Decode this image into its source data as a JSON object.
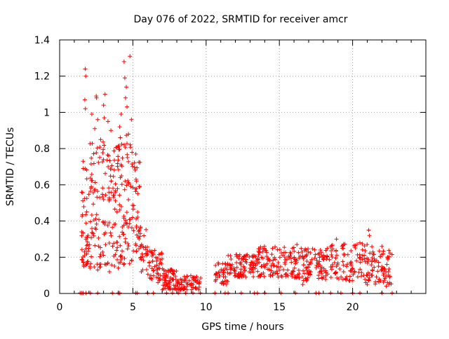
{
  "chart_data": {
    "type": "scatter",
    "title": "Day 076 of 2022, SRMTID for receiver amcr",
    "xlabel": "GPS time / hours",
    "ylabel": "SRMTID / TECUs",
    "xlim": [
      0,
      25
    ],
    "ylim": [
      0,
      1.4
    ],
    "xticks": [
      "0",
      "5",
      "10",
      "15",
      "20"
    ],
    "xtick_values": [
      0,
      5,
      10,
      15,
      20
    ],
    "yticks": [
      "0",
      "0.2",
      "0.4",
      "0.6",
      "0.8",
      "1",
      "1.2",
      "1.4"
    ],
    "ytick_values": [
      0,
      0.2,
      0.4,
      0.6,
      0.8,
      1.0,
      1.2,
      1.4
    ],
    "grid": true,
    "marker": "plus",
    "series": [
      {
        "name": "SRMTID",
        "color": "#ff0000",
        "segments": [
          {
            "t0": 1.5,
            "t1": 2.0,
            "lo": 0.15,
            "hi": 0.72,
            "n": 45
          },
          {
            "t0": 2.0,
            "t1": 3.0,
            "lo": 0.14,
            "hi": 0.85,
            "n": 70
          },
          {
            "t0": 3.0,
            "t1": 4.0,
            "lo": 0.15,
            "hi": 0.82,
            "n": 70
          },
          {
            "t0": 4.0,
            "t1": 5.0,
            "lo": 0.16,
            "hi": 0.88,
            "n": 75
          },
          {
            "t0": 5.0,
            "t1": 5.5,
            "lo": 0.18,
            "hi": 0.75,
            "n": 35
          },
          {
            "t0": 5.5,
            "t1": 6.0,
            "lo": 0.12,
            "hi": 0.38,
            "n": 25
          },
          {
            "t0": 6.0,
            "t1": 7.0,
            "lo": 0.06,
            "hi": 0.24,
            "n": 50
          },
          {
            "t0": 7.0,
            "t1": 8.0,
            "lo": 0.02,
            "hi": 0.14,
            "n": 60
          },
          {
            "t0": 8.0,
            "t1": 9.7,
            "lo": 0.02,
            "hi": 0.1,
            "n": 70
          },
          {
            "t0": 10.6,
            "t1": 11.5,
            "lo": 0.05,
            "hi": 0.17,
            "n": 40
          },
          {
            "t0": 11.5,
            "t1": 13.5,
            "lo": 0.09,
            "hi": 0.22,
            "n": 90
          },
          {
            "t0": 13.5,
            "t1": 16.0,
            "lo": 0.09,
            "hi": 0.26,
            "n": 110
          },
          {
            "t0": 16.0,
            "t1": 18.5,
            "lo": 0.07,
            "hi": 0.25,
            "n": 110
          },
          {
            "t0": 18.5,
            "t1": 21.5,
            "lo": 0.07,
            "hi": 0.28,
            "n": 120
          },
          {
            "t0": 21.5,
            "t1": 22.7,
            "lo": 0.05,
            "hi": 0.24,
            "n": 50
          }
        ],
        "highlights": [
          [
            1.75,
            1.24
          ],
          [
            1.78,
            1.2
          ],
          [
            1.72,
            1.07
          ],
          [
            1.76,
            1.02
          ],
          [
            2.5,
            1.09
          ],
          [
            2.52,
            1.08
          ],
          [
            2.6,
            0.96
          ],
          [
            3.1,
            1.1
          ],
          [
            3.0,
            1.04
          ],
          [
            3.05,
            0.97
          ],
          [
            2.2,
            0.99
          ],
          [
            4.4,
            1.28
          ],
          [
            4.45,
            1.19
          ],
          [
            4.8,
            1.31
          ],
          [
            4.5,
            1.08
          ],
          [
            4.6,
            1.03
          ],
          [
            4.2,
            0.99
          ],
          [
            4.55,
            1.14
          ],
          [
            1.6,
            0.73
          ],
          [
            2.4,
            0.91
          ],
          [
            3.3,
            0.95
          ],
          [
            4.1,
            0.92
          ],
          [
            4.9,
            0.96
          ],
          [
            3.5,
            0.9
          ],
          [
            2.8,
            0.85
          ],
          [
            4.7,
            0.88
          ],
          [
            5.2,
            0.77
          ],
          [
            4.0,
            0.14
          ],
          [
            3.4,
            0.12
          ],
          [
            2.6,
            0.13
          ],
          [
            11.7,
            0.19
          ],
          [
            13.2,
            0.2
          ],
          [
            16.2,
            0.27
          ],
          [
            18.9,
            0.3
          ],
          [
            19.3,
            0.25
          ],
          [
            21.1,
            0.35
          ],
          [
            21.15,
            0.32
          ],
          [
            20.5,
            0.28
          ],
          [
            22.0,
            0.26
          ],
          [
            17.8,
            0.24
          ],
          [
            21.0,
            0.05
          ],
          [
            20.9,
            0.06
          ],
          [
            22.3,
            0.04
          ],
          [
            16.6,
            0.05
          ],
          [
            19.8,
            0.07
          ]
        ],
        "zeros": [
          1.4,
          1.5,
          1.6,
          1.8,
          2.1,
          2.6,
          3.6,
          4.0,
          4.1,
          5.2,
          5.3,
          6.0,
          6.4,
          7.3,
          7.7,
          8.1,
          8.6,
          9.1,
          9.6,
          10.6,
          11.3,
          11.5,
          12.4,
          13.3,
          13.5,
          14.0,
          15.1,
          16.1,
          17.5,
          17.7,
          18.5,
          19.2,
          20.0,
          20.5,
          22.0,
          22.7
        ]
      }
    ]
  }
}
